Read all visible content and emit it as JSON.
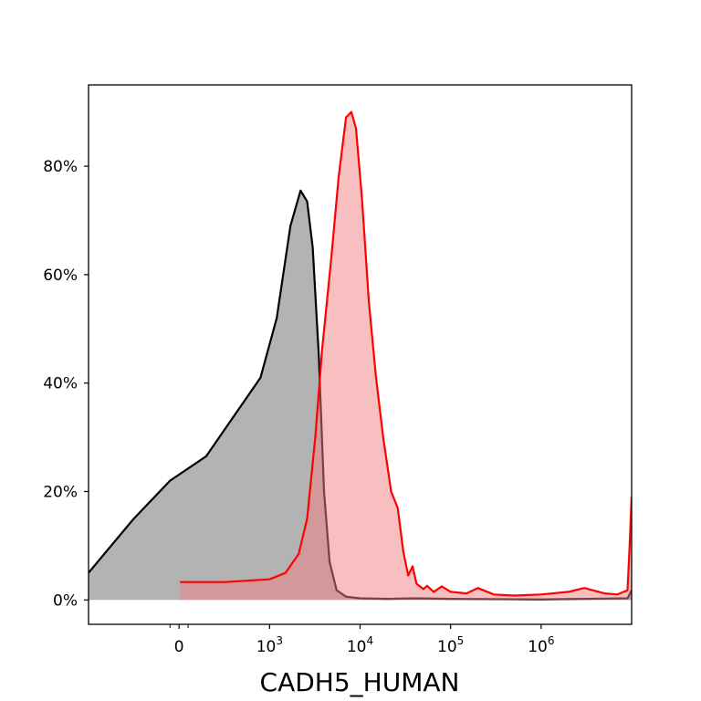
{
  "chart_data": {
    "type": "area",
    "xlabel": "CADH5_HUMAN",
    "ylabel": "",
    "x_scale": "symlog",
    "xlim": [
      -1000,
      10000000
    ],
    "ylim": [
      -0.045,
      0.95
    ],
    "grid": false,
    "y_ticks": [
      {
        "value": 0.0,
        "label": "0%"
      },
      {
        "value": 0.2,
        "label": "20%"
      },
      {
        "value": 0.4,
        "label": "40%"
      },
      {
        "value": 0.6,
        "label": "60%"
      },
      {
        "value": 0.8,
        "label": "80%"
      }
    ],
    "x_ticks": [
      {
        "value": 0,
        "label": "0",
        "exp": ""
      },
      {
        "value": 1000,
        "label": "10",
        "exp": "3"
      },
      {
        "value": 10000,
        "label": "10",
        "exp": "4"
      },
      {
        "value": 100000,
        "label": "10",
        "exp": "5"
      },
      {
        "value": 1000000,
        "label": "10",
        "exp": "6"
      }
    ],
    "x_minor_ticks": [
      -100,
      100
    ],
    "series": [
      {
        "color": "#000000",
        "fill": "#a0a0a0",
        "fill_opacity": 0.8,
        "points": [
          [
            -1000,
            0.05
          ],
          [
            -900,
            0.07
          ],
          [
            -500,
            0.15
          ],
          [
            -100,
            0.22
          ],
          [
            300,
            0.265
          ],
          [
            900,
            0.41
          ],
          [
            1200,
            0.52
          ],
          [
            1700,
            0.69
          ],
          [
            2200,
            0.755
          ],
          [
            2600,
            0.735
          ],
          [
            3000,
            0.65
          ],
          [
            3500,
            0.45
          ],
          [
            4000,
            0.2
          ],
          [
            4600,
            0.07
          ],
          [
            5500,
            0.018
          ],
          [
            7000,
            0.006
          ],
          [
            10000,
            0.003
          ],
          [
            20000,
            0.002
          ],
          [
            40000,
            0.003
          ],
          [
            100000,
            0.002
          ],
          [
            1000000,
            0.001
          ],
          [
            9000000,
            0.003
          ],
          [
            10000000,
            0.018
          ]
        ]
      },
      {
        "color": "#ff0000",
        "fill": "#f08080",
        "fill_opacity": 0.5,
        "points": [
          [
            10,
            0.033
          ],
          [
            500,
            0.033
          ],
          [
            1000,
            0.038
          ],
          [
            1500,
            0.05
          ],
          [
            2100,
            0.085
          ],
          [
            2600,
            0.15
          ],
          [
            3200,
            0.3
          ],
          [
            3800,
            0.46
          ],
          [
            4800,
            0.63
          ],
          [
            5800,
            0.78
          ],
          [
            7000,
            0.89
          ],
          [
            8000,
            0.9
          ],
          [
            9000,
            0.87
          ],
          [
            10500,
            0.74
          ],
          [
            12500,
            0.55
          ],
          [
            15000,
            0.41
          ],
          [
            18000,
            0.3
          ],
          [
            22000,
            0.2
          ],
          [
            26000,
            0.17
          ],
          [
            30000,
            0.09
          ],
          [
            34000,
            0.045
          ],
          [
            38000,
            0.062
          ],
          [
            42000,
            0.03
          ],
          [
            50000,
            0.02
          ],
          [
            55000,
            0.026
          ],
          [
            65000,
            0.015
          ],
          [
            80000,
            0.025
          ],
          [
            100000,
            0.015
          ],
          [
            150000,
            0.012
          ],
          [
            200000,
            0.022
          ],
          [
            300000,
            0.01
          ],
          [
            500000,
            0.008
          ],
          [
            1000000,
            0.01
          ],
          [
            2000000,
            0.015
          ],
          [
            3000000,
            0.022
          ],
          [
            5000000,
            0.012
          ],
          [
            7000000,
            0.01
          ],
          [
            9000000,
            0.018
          ],
          [
            9500000,
            0.1
          ],
          [
            10000000,
            0.19
          ]
        ]
      }
    ]
  }
}
